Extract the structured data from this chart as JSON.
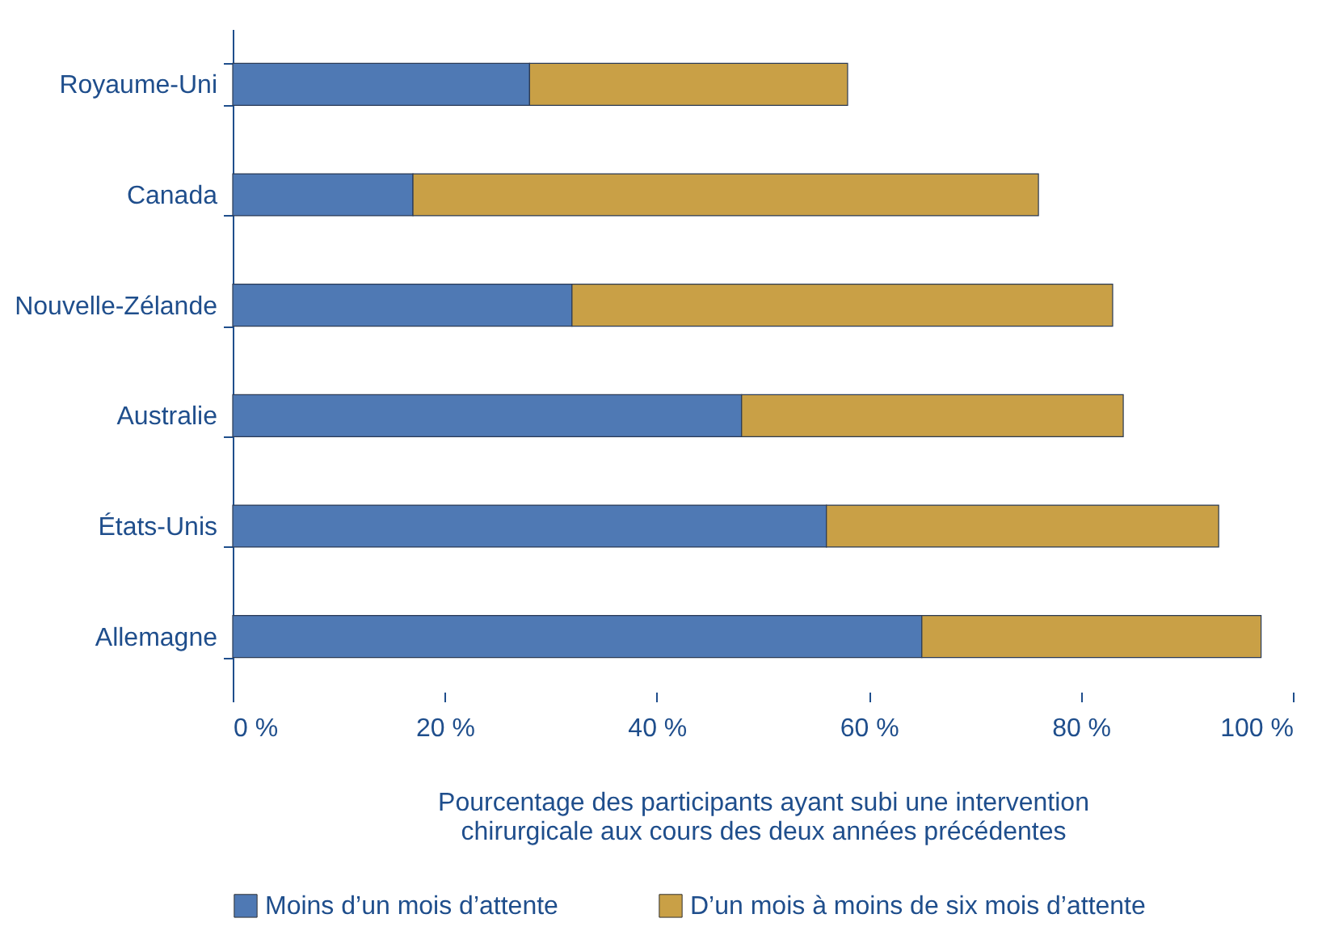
{
  "chart_data": {
    "type": "bar",
    "orientation": "horizontal",
    "stacked": true,
    "categories": [
      "Royaume-Uni",
      "Canada",
      "Nouvelle-Zélande",
      "Australie",
      "États-Unis",
      "Allemagne"
    ],
    "series": [
      {
        "name": "Moins d’un mois d’attente",
        "color": "#4f79b4",
        "values": [
          28,
          17,
          32,
          48,
          56,
          65
        ]
      },
      {
        "name": "D’un mois à moins de six mois d’attente",
        "color": "#c9a046",
        "values": [
          30,
          59,
          51,
          36,
          37,
          32
        ]
      }
    ],
    "xlabel": "Pourcentage des participants ayant subi une intervention\nchirurgicale aux cours des deux années précédentes",
    "xlim": [
      0,
      100
    ],
    "xticks": [
      {
        "value": 0,
        "label": "0 %"
      },
      {
        "value": 20,
        "label": "20 %"
      },
      {
        "value": 40,
        "label": "40 %"
      },
      {
        "value": 60,
        "label": "60 %"
      },
      {
        "value": 80,
        "label": "80 %"
      },
      {
        "value": 100,
        "label": "100 %"
      }
    ],
    "grid": false,
    "legend": "bottom"
  }
}
